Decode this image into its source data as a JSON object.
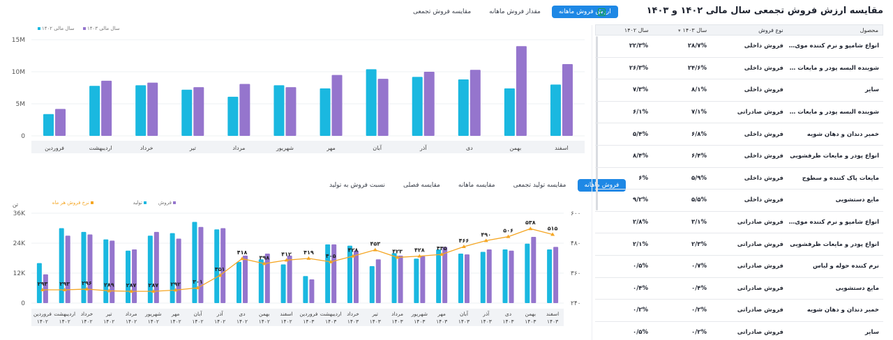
{
  "top_tabs": [
    "ارزش فروش ماهانه",
    "مقدار فروش ماهانه",
    "مقایسه فروش تجمعی"
  ],
  "mid_tabs": [
    "فروش ماهانه",
    "مقایسه تولید تجمعی",
    "مقایسه ماهانه",
    "مقایسه فصلی",
    "نسبت فروش به تولید"
  ],
  "colors": {
    "accent": "#1e88e5",
    "cyan": "#1ab8e0",
    "purple": "#9575cd",
    "orange": "#f5a623",
    "export": "#16a34a"
  },
  "chart_data": [
    {
      "type": "bar",
      "categories": [
        "فروردین",
        "اردیبهشت",
        "خرداد",
        "تیر",
        "مرداد",
        "شهریور",
        "مهر",
        "آبان",
        "آذر",
        "دی",
        "بهمن",
        "اسفند"
      ],
      "series": [
        {
          "name": "سال مالی ۱۴۰۲",
          "color": "#1ab8e0",
          "values": [
            3.4,
            7.8,
            7.9,
            7.2,
            6.1,
            7.9,
            7.4,
            10.4,
            9.2,
            8.8,
            7.4,
            8.0
          ]
        },
        {
          "name": "سال مالی ۱۴۰۳",
          "color": "#9575cd",
          "values": [
            4.2,
            8.6,
            8.3,
            7.6,
            8.1,
            7.6,
            9.5,
            8.9,
            10.0,
            10.3,
            14.0,
            11.2
          ]
        }
      ],
      "ytick_labels": [
        "0",
        "5M",
        "10M",
        "15M"
      ],
      "ylim": [
        0,
        15
      ],
      "legend_position": "top-left",
      "grid": true
    },
    {
      "type": "bar",
      "categories": [
        "فروردین ۱۴۰۲",
        "اردیبهشت ۱۴۰۲",
        "خرداد ۱۴۰۲",
        "تیر ۱۴۰۲",
        "مرداد ۱۴۰۲",
        "شهریور ۱۴۰۲",
        "مهر ۱۴۰۲",
        "آبان ۱۴۰۲",
        "آذر ۱۴۰۲",
        "دی ۱۴۰۲",
        "بهمن ۱۴۰۲",
        "اسفند ۱۴۰۲",
        "فروردین ۱۴۰۳",
        "اردیبهشت ۱۴۰۳",
        "خرداد ۱۴۰۳",
        "تیر ۱۴۰۳",
        "مرداد ۱۴۰۳",
        "شهریور ۱۴۰۳",
        "مهر ۱۴۰۳",
        "آبان ۱۴۰۳",
        "آذر ۱۴۰۳",
        "دی ۱۴۰۳",
        "بهمن ۱۴۰۳",
        "اسفند ۱۴۰۳"
      ],
      "series": [
        {
          "name": "تولید",
          "color": "#1ab8e0",
          "axis": "left",
          "values": [
            16,
            30,
            28.5,
            25.5,
            21,
            27,
            28,
            32.5,
            29.5,
            16.5,
            17.5,
            15.5,
            10.8,
            23.5,
            23,
            14.8,
            20,
            17.8,
            21.5,
            19.8,
            20.5,
            21.5,
            23.8,
            21.5
          ]
        },
        {
          "name": "فروش",
          "color": "#9575cd",
          "axis": "left",
          "values": [
            11.5,
            27,
            27.5,
            25,
            21.5,
            28.5,
            25.8,
            30.5,
            30,
            19,
            19.8,
            19,
            9.5,
            23.5,
            21,
            17.5,
            19,
            18.8,
            22.5,
            19.5,
            21.5,
            21,
            26.5,
            22.5
          ]
        },
        {
          "name": "نرخ فروش هر ماه",
          "color": "#f5a623",
          "axis": "right",
          "values": [
            293,
            293,
            296,
            289,
            287,
            287,
            292,
            301,
            351,
            418,
            398,
            412,
            419,
            405,
            428,
            453,
            423,
            428,
            435,
            466,
            490,
            506,
            538,
            515
          ]
        }
      ],
      "data_labels": [
        "۲۹۳",
        "۲۹۳",
        "۲۹۶",
        "۲۸۹",
        "۲۸۷",
        "۲۸۷",
        "۲۹۲",
        "۳۰۱",
        "۳۵۱",
        "۴۱۸",
        "۳۹۸",
        "۴۱۲",
        "۴۱۹",
        "۴۰۵",
        "۴۲۸",
        "۴۵۳",
        "۴۲۳",
        "۴۲۸",
        "۴۳۵",
        "۴۶۶",
        "۴۹۰",
        "۵۰۶",
        "۵۳۸",
        "۵۱۵"
      ],
      "left_unit": "تن",
      "ytick_labels_left": [
        "0",
        "12K",
        "24K",
        "36K"
      ],
      "ylim_left": [
        0,
        36
      ],
      "ytick_labels_right": [
        "۲۴۰",
        "۳۶۰",
        "۴۸۰",
        "۶۰۰"
      ],
      "ylim_right": [
        240,
        600
      ],
      "legend_position": "top-left",
      "grid": true
    }
  ],
  "table": {
    "title": "مقایسه ارزش فروش تجمعی سال مالی ۱۴۰۲ و ۱۴۰۳",
    "columns": [
      "محصول",
      "نوع فروش",
      "سال ۱۴۰۳",
      "سال ۱۴۰۲"
    ],
    "rows": [
      [
        "انواع شامپو و نرم کننده موی سر",
        "فروش داخلی",
        "۲۸/۷%",
        "۲۲/۳%"
      ],
      [
        "شوینده البسه پودر و مایعات لباسشویی",
        "فروش داخلی",
        "۲۴/۶%",
        "۲۶/۳%"
      ],
      [
        "سایر",
        "فروش داخلی",
        "۸/۱%",
        "۷/۳%"
      ],
      [
        "شوینده البسه پودر و مایعات لباسشویی",
        "فروش صادراتی",
        "۷/۱%",
        "۶/۱%"
      ],
      [
        "خمیر دندان و دهان شویه",
        "فروش داخلی",
        "۶/۸%",
        "۵/۴%"
      ],
      [
        "انواع پودر و مایعات ظرفشویی",
        "فروش داخلی",
        "۶/۴%",
        "۸/۴%"
      ],
      [
        "مایعات پاک کننده و سطوح",
        "فروش داخلی",
        "۵/۹%",
        "۶%"
      ],
      [
        "مایع دستشویی",
        "فروش داخلی",
        "۵/۵%",
        "۹/۲%"
      ],
      [
        "انواع شامپو و نرم کننده موی سر",
        "فروش صادراتی",
        "۳/۱%",
        "۲/۸%"
      ],
      [
        "انواع پودر و مایعات ظرفشویی",
        "فروش صادراتی",
        "۲/۳%",
        "۲/۱%"
      ],
      [
        "نرم کننده حوله و لباس",
        "فروش صادراتی",
        "۰/۷%",
        "۰/۵%"
      ],
      [
        "مایع دستشویی",
        "فروش صادراتی",
        "۰/۴%",
        "۰/۴%"
      ],
      [
        "خمیر دندان و دهان شویه",
        "فروش صادراتی",
        "۰/۲%",
        "۰/۲%"
      ],
      [
        "سایر",
        "فروش صادراتی",
        "۰/۲%",
        "۰/۵%"
      ]
    ]
  }
}
